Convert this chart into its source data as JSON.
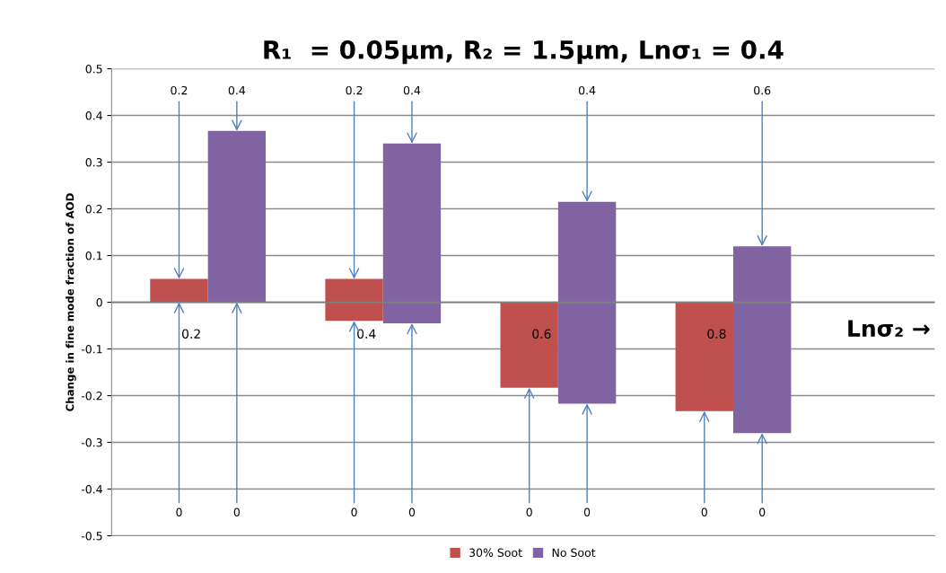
{
  "chart_data": {
    "type": "bar",
    "title": "R₁  = 0.05μm, R₂ = 1.5μm, Lnσ₁ = 0.4",
    "xlabel": "Lnσ₂ →",
    "ylabel": "Change in fine mode fraction of AOD",
    "categories": [
      "0.2",
      "0.4",
      "0.6",
      "0.8"
    ],
    "series": [
      {
        "name": "30% Soot",
        "color": "#c0504d",
        "base": [
          0,
          -0.04,
          -0.183,
          -0.233
        ],
        "values": [
          0.05,
          0.09,
          0.183,
          0.233
        ]
      },
      {
        "name": "No Soot",
        "color": "#8064a2",
        "base": [
          0,
          -0.045,
          -0.217,
          -0.28
        ],
        "values": [
          0.367,
          0.385,
          0.432,
          0.4
        ]
      }
    ],
    "ylim": [
      -0.5,
      0.5
    ],
    "yticks": [
      -0.5,
      -0.4,
      -0.3,
      -0.2,
      -0.1,
      0,
      0.1,
      0.2,
      0.3,
      0.4,
      0.5
    ],
    "grid": "y",
    "legend": "bottom",
    "annotations": [
      {
        "text": "0.2",
        "y": 0.05
      },
      {
        "text": "0.4",
        "y": 0.367
      },
      {
        "text": "0",
        "y": 0
      },
      {
        "text": "0",
        "y": 0
      },
      {
        "text": "0.2",
        "y": 0.05
      },
      {
        "text": "0.4",
        "y": 0.34
      },
      {
        "text": "0",
        "y": -0.04
      },
      {
        "text": "0",
        "y": -0.045
      },
      {
        "text": "0.4",
        "y": 0.215
      },
      {
        "text": "0",
        "y": -0.183
      },
      {
        "text": "0",
        "y": -0.217
      },
      {
        "text": "0.6",
        "y": 0.12
      },
      {
        "text": "0",
        "y": -0.233
      },
      {
        "text": "0",
        "y": -0.28
      }
    ]
  }
}
